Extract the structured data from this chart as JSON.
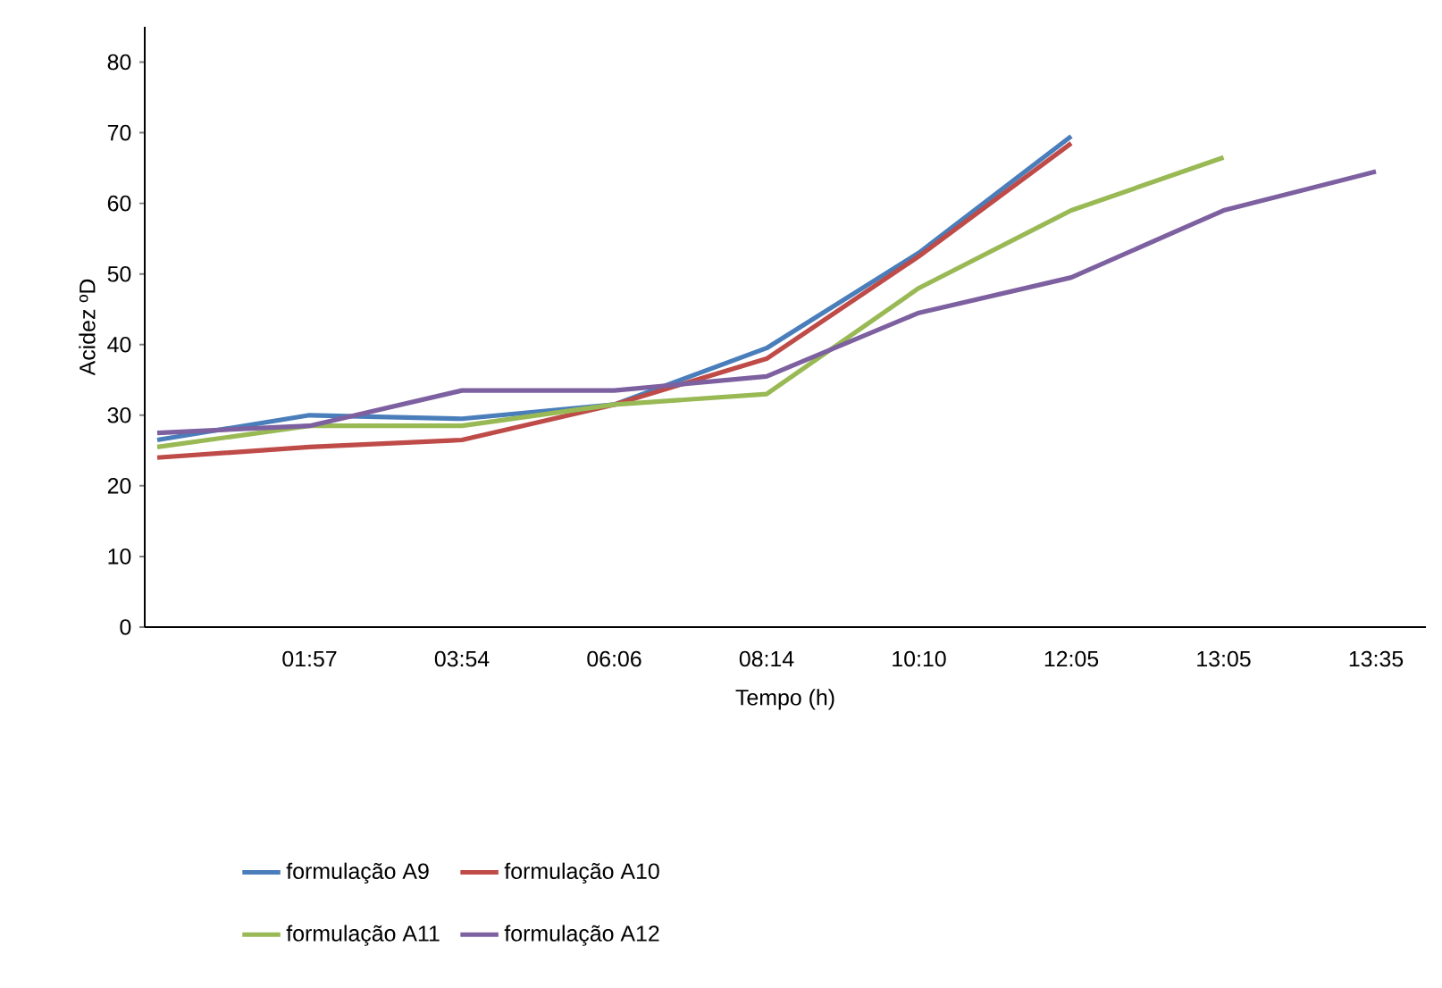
{
  "chart_data": {
    "type": "line",
    "xlabel": "Tempo (h)",
    "ylabel": "Acidez  ºD",
    "categories": [
      null,
      "01:57",
      "03:54",
      "06:06",
      "08:14",
      "10:10",
      "12:05",
      "13:05",
      "13:35"
    ],
    "series": [
      {
        "name": "formulação A9",
        "color": "#4a7ebb",
        "values": [
          26.5,
          30,
          29.5,
          31.5,
          39.5,
          53,
          69.5,
          null,
          null
        ]
      },
      {
        "name": "formulação A10",
        "color": "#be4b48",
        "values": [
          24,
          25.5,
          26.5,
          31.5,
          38,
          52.5,
          68.5,
          null,
          null
        ]
      },
      {
        "name": "formulação A11",
        "color": "#98b954",
        "values": [
          25.5,
          28.5,
          28.5,
          31.5,
          33,
          48,
          59,
          66.5,
          null
        ]
      },
      {
        "name": "formulação A12",
        "color": "#7d60a0",
        "values": [
          27.5,
          28.5,
          33.5,
          33.5,
          35.5,
          44.5,
          49.5,
          59,
          64.5
        ]
      }
    ],
    "ylim": [
      0,
      85
    ],
    "yticks": [
      0,
      10,
      20,
      30,
      40,
      50,
      60,
      70,
      80
    ],
    "grid": false,
    "legend": "bottom",
    "marker": "none",
    "line_style": "solid"
  }
}
